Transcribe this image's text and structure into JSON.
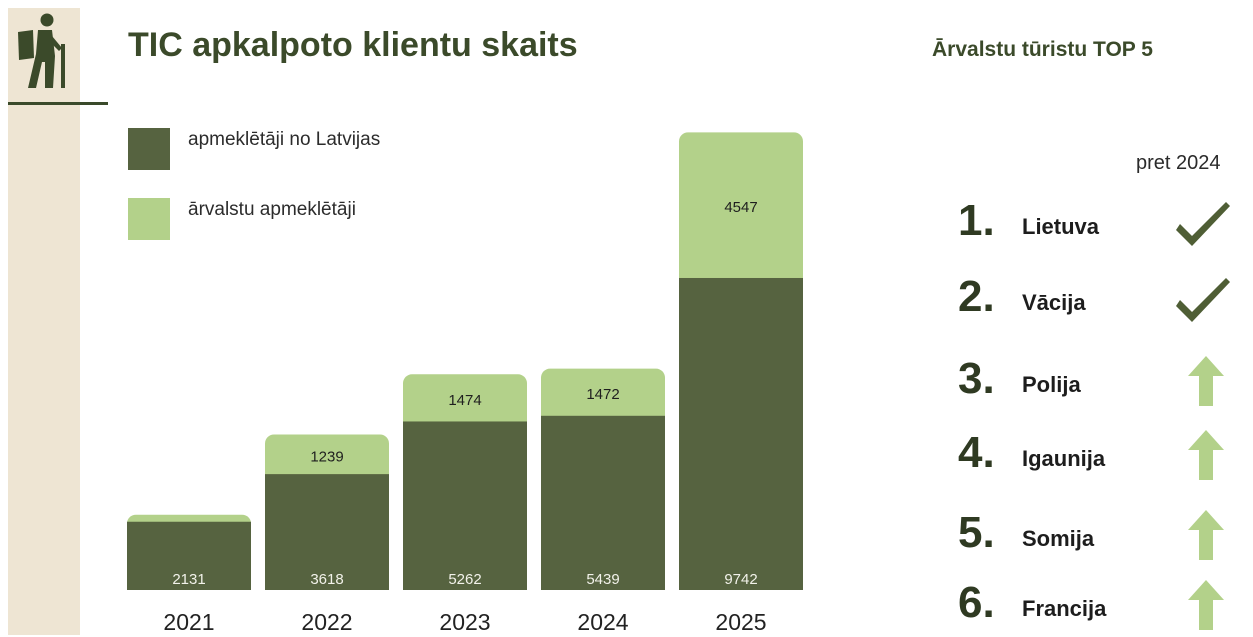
{
  "header": {
    "title": "TIC apkalpoto klientu skaits",
    "icon": "hiker-icon"
  },
  "legend": {
    "domestic_label": "apmeklētāji no Latvijas",
    "foreign_label": "ārvalstu apmeklētāji"
  },
  "colors": {
    "domestic": "#566340",
    "foreign": "#b3d18a",
    "accent_dark": "#3b4a2a",
    "strip": "#eee5d3"
  },
  "chart_data": {
    "type": "bar",
    "stacked": true,
    "categories": [
      "2021",
      "2022",
      "2023",
      "2024",
      "2025"
    ],
    "series": [
      {
        "name": "apmeklētāji no Latvijas",
        "values": [
          2131,
          3618,
          5262,
          5439,
          9742
        ],
        "labels": [
          "2131",
          "3618",
          "5262",
          "5439",
          "9742"
        ]
      },
      {
        "name": "ārvalstu apmeklētāji",
        "values": [
          220,
          1239,
          1474,
          1472,
          4547
        ],
        "labels": [
          "",
          "1239",
          "1474",
          "1472",
          "4547"
        ]
      }
    ],
    "ylim": [
      0,
      14300
    ],
    "grid": false,
    "legend_position": "top-left"
  },
  "top5": {
    "title": "Ārvalstu tūristu TOP 5",
    "compare_header": "pret 2024",
    "items": [
      {
        "rank": "1.",
        "country": "Lietuva",
        "status": "same",
        "icon": "checkmark-icon"
      },
      {
        "rank": "2.",
        "country": "Vācija",
        "status": "same",
        "icon": "checkmark-icon"
      },
      {
        "rank": "3.",
        "country": "Polija",
        "status": "up",
        "icon": "arrow-up-icon"
      },
      {
        "rank": "4.",
        "country": "Igaunija",
        "status": "up",
        "icon": "arrow-up-icon"
      },
      {
        "rank": "5.",
        "country": "Somija",
        "status": "up",
        "icon": "arrow-up-icon"
      },
      {
        "rank": "6.",
        "country": "Francija",
        "status": "up",
        "icon": "arrow-up-icon"
      }
    ]
  }
}
